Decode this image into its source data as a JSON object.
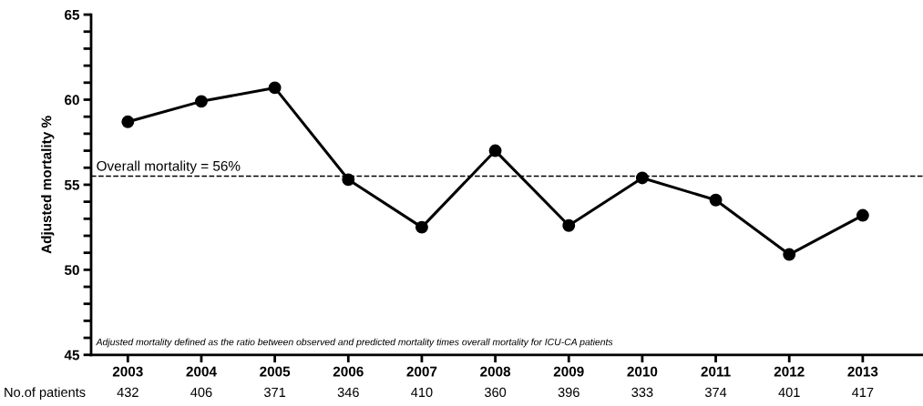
{
  "chart_data": {
    "type": "line",
    "ylabel": "Adjusted mortality %",
    "categories": [
      "2003",
      "2004",
      "2005",
      "2006",
      "2007",
      "2008",
      "2009",
      "2010",
      "2011",
      "2012",
      "2013"
    ],
    "series": [
      {
        "color": "#000000",
        "values": [
          58.7,
          59.9,
          60.7,
          55.3,
          52.5,
          57.0,
          52.6,
          55.4,
          54.1,
          50.9,
          53.2
        ]
      }
    ],
    "marker": "circle",
    "line_style": "solid",
    "grid": false,
    "legend": false,
    "ylim": [
      45,
      65
    ],
    "yticks": [
      45,
      {
        "value": 46,
        "label": null
      },
      {
        "value": 47,
        "label": null
      },
      {
        "value": 48,
        "label": null
      },
      {
        "value": 49,
        "label": null
      },
      50,
      {
        "value": 51,
        "label": null
      },
      {
        "value": 52,
        "label": null
      },
      {
        "value": 53,
        "label": null
      },
      {
        "value": 54,
        "label": null
      },
      55,
      {
        "value": 56,
        "label": null
      },
      {
        "value": 57,
        "label": null
      },
      {
        "value": 58,
        "label": null
      },
      {
        "value": 59,
        "label": null
      },
      60,
      {
        "value": 61,
        "label": null
      },
      {
        "value": 62,
        "label": null
      },
      {
        "value": 63,
        "label": null
      },
      {
        "value": 64,
        "label": null
      },
      65
    ],
    "ref_lines": [
      {
        "axis": "y",
        "value": 55.5,
        "label": "Overall mortality = 56%",
        "color": "#000000",
        "line_style": "dashed"
      }
    ],
    "annotations": [
      "Adjusted mortality defined as the ratio between observed and predicted mortality times overall mortality for ICU-CA patients",
      "No.of patients",
      "432",
      "406",
      "371",
      "346",
      "410",
      "360",
      "396",
      "333",
      "374",
      "401",
      "417"
    ]
  }
}
